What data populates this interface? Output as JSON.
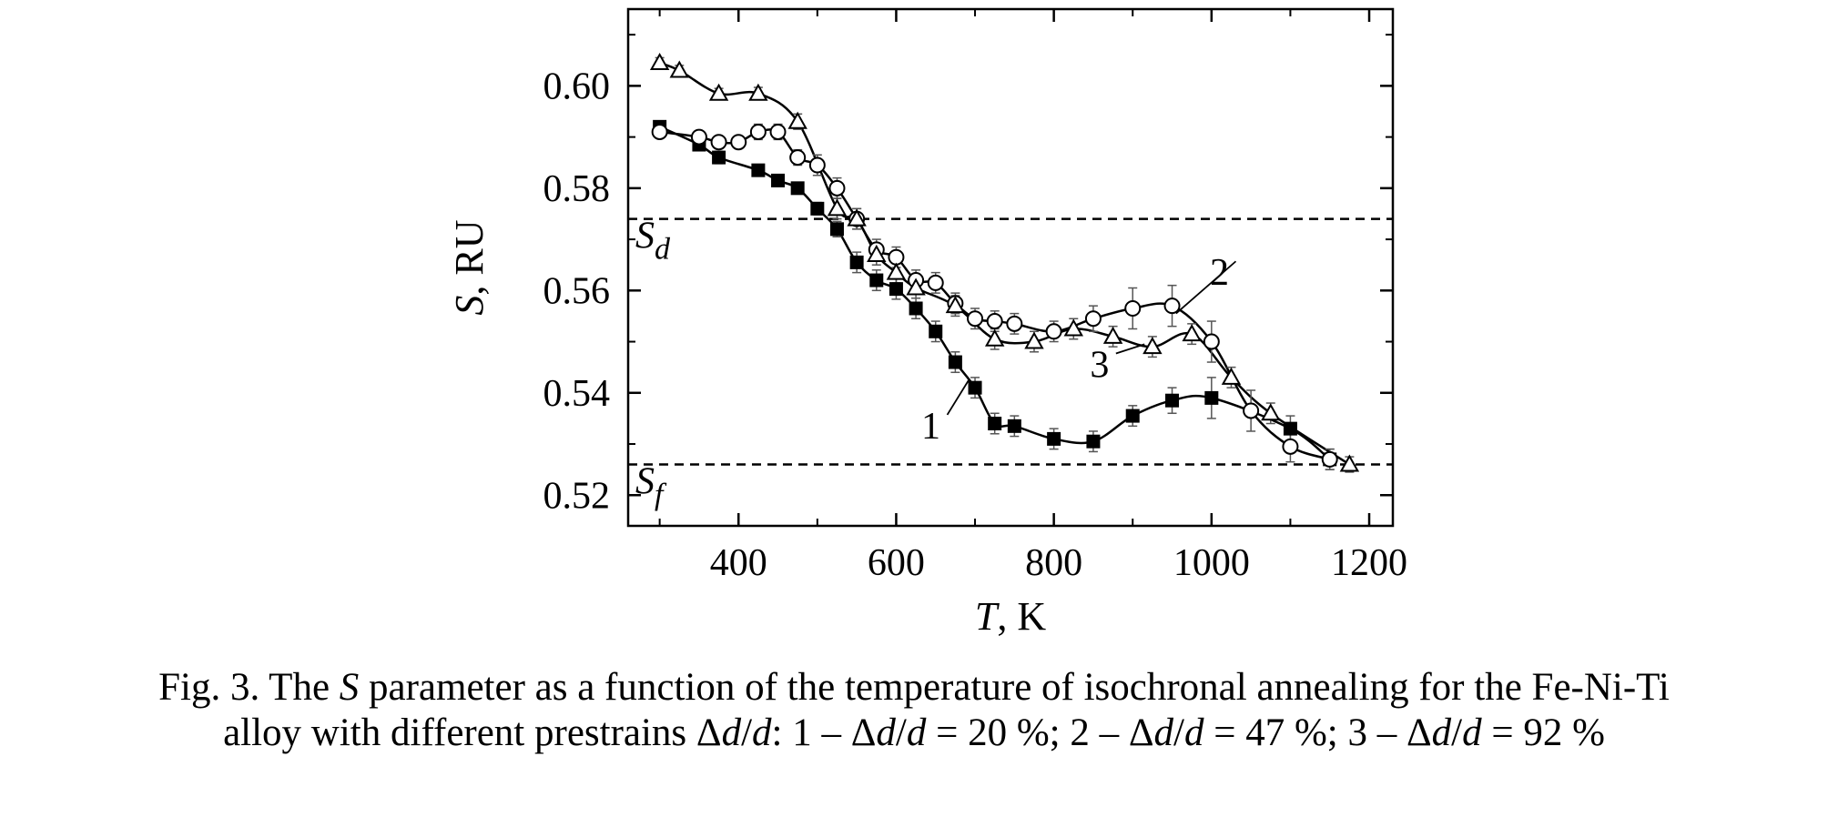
{
  "chart_data": {
    "type": "scatter",
    "xlabel_var": "T",
    "xlabel_unit": ", K",
    "ylabel_var": "S",
    "ylabel_unit": ", RU",
    "xlim": [
      260,
      1230
    ],
    "ylim": [
      0.514,
      0.615
    ],
    "xticks": [
      400,
      600,
      800,
      1000,
      1200
    ],
    "xtick_labels": [
      "400",
      "600",
      "800",
      "1000",
      "1200"
    ],
    "yticks": [
      0.52,
      0.54,
      0.56,
      0.58,
      0.6
    ],
    "ytick_labels": [
      "0.52",
      "0.54",
      "0.56",
      "0.58",
      "0.60"
    ],
    "grid": false,
    "reference_lines": [
      {
        "label_main": "S",
        "label_sub": "d",
        "y": 0.574
      },
      {
        "label_main": "S",
        "label_sub": "f",
        "y": 0.526
      }
    ],
    "series": [
      {
        "name": "1",
        "marker": "filled-square",
        "color": "#000000",
        "x": [
          300,
          350,
          375,
          425,
          450,
          475,
          500,
          525,
          550,
          575,
          600,
          625,
          650,
          675,
          700,
          725,
          750,
          800,
          850,
          900,
          950,
          1000,
          1100,
          1150
        ],
        "y": [
          0.592,
          0.5885,
          0.586,
          0.5835,
          0.5815,
          0.58,
          0.576,
          0.572,
          0.5655,
          0.562,
          0.5603,
          0.5565,
          0.552,
          0.546,
          0.541,
          0.534,
          0.5335,
          0.531,
          0.5305,
          0.5355,
          0.5385,
          0.539,
          0.533,
          0.527
        ],
        "err": [
          0.001,
          0.001,
          0.0012,
          0.001,
          0.001,
          0.001,
          0.0012,
          0.0015,
          0.002,
          0.002,
          0.002,
          0.002,
          0.002,
          0.002,
          0.002,
          0.002,
          0.002,
          0.002,
          0.002,
          0.002,
          0.0025,
          0.004,
          0.0025,
          0.002
        ]
      },
      {
        "name": "2",
        "marker": "open-circle",
        "color": "#000000",
        "x": [
          300,
          350,
          375,
          400,
          425,
          450,
          475,
          500,
          525,
          550,
          575,
          600,
          625,
          650,
          675,
          700,
          725,
          750,
          800,
          850,
          900,
          950,
          1000,
          1050,
          1100,
          1150
        ],
        "y": [
          0.591,
          0.59,
          0.589,
          0.589,
          0.591,
          0.591,
          0.586,
          0.5845,
          0.58,
          0.574,
          0.568,
          0.5665,
          0.562,
          0.5615,
          0.5575,
          0.5545,
          0.554,
          0.5535,
          0.552,
          0.5545,
          0.5565,
          0.557,
          0.55,
          0.5365,
          0.5295,
          0.527
        ],
        "err": [
          0.001,
          0.001,
          0.001,
          0.001,
          0.0015,
          0.0015,
          0.0015,
          0.002,
          0.002,
          0.002,
          0.002,
          0.002,
          0.002,
          0.002,
          0.002,
          0.002,
          0.002,
          0.002,
          0.002,
          0.0025,
          0.004,
          0.004,
          0.004,
          0.004,
          0.003,
          0.002
        ]
      },
      {
        "name": "3",
        "marker": "open-triangle",
        "color": "#000000",
        "x": [
          300,
          325,
          375,
          425,
          475,
          525,
          550,
          575,
          600,
          625,
          675,
          725,
          775,
          825,
          875,
          925,
          975,
          1025,
          1075,
          1175
        ],
        "y": [
          0.6045,
          0.603,
          0.5985,
          0.5985,
          0.593,
          0.576,
          0.574,
          0.567,
          0.5635,
          0.5605,
          0.557,
          0.5505,
          0.55,
          0.5525,
          0.551,
          0.549,
          0.5515,
          0.543,
          0.536,
          0.526
        ],
        "err": [
          0.001,
          0.001,
          0.001,
          0.0012,
          0.0015,
          0.002,
          0.002,
          0.002,
          0.002,
          0.002,
          0.002,
          0.002,
          0.002,
          0.002,
          0.002,
          0.002,
          0.002,
          0.002,
          0.002,
          0.0015
        ]
      }
    ],
    "curve_labels": [
      {
        "text": "1",
        "tx": 644,
        "ty": 0.5325,
        "ax": 692,
        "ay": 0.5425
      },
      {
        "text": "2",
        "tx": 1010,
        "ty": 0.5625,
        "ax": 955,
        "ay": 0.5555
      },
      {
        "text": "3",
        "tx": 858,
        "ty": 0.5445,
        "ax": 915,
        "ay": 0.5495
      }
    ]
  },
  "caption": {
    "l1_a": "Fig. 3. The ",
    "l1_b": "S",
    "l1_c": " parameter as a function of the temperature of isochronal annealing for the Fe-Ni-Ti",
    "l2_a": "alloy with different prestrains Δ",
    "l2_b": "d",
    "l2_c": "/",
    "l2_d": "d",
    "l2_e": ": 1 – Δ",
    "l2_f": "d",
    "l2_g": "/",
    "l2_h": "d",
    "l2_i": " = 20 %; 2 – Δ",
    "l2_j": "d",
    "l2_k": "/",
    "l2_l": "d",
    "l2_m": " = 47 %; 3 – Δ",
    "l2_n": "d",
    "l2_o": "/",
    "l2_p": "d",
    "l2_q": " = 92 %"
  }
}
